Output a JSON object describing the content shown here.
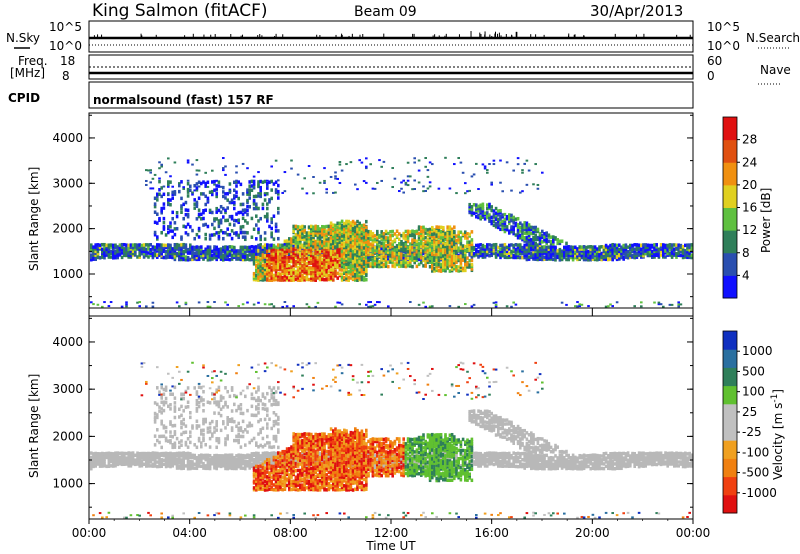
{
  "header": {
    "station": "King Salmon (fitACF)",
    "beam": "Beam 09",
    "date": "30/Apr/2013"
  },
  "top_panels": {
    "nsky_label": "N.Sky",
    "nsearch_label": "N.Search",
    "freq_label_1": "Freq.",
    "freq_label_2": "[MHz]",
    "nave_label": "Nave",
    "cpid_label": "CPID",
    "noise_ticks_left": [
      "10^5",
      "10^0"
    ],
    "noise_ticks_right": [
      "10^5",
      "10^0"
    ],
    "freq_ticks": [
      "18",
      "8"
    ],
    "nave_ticks": [
      "60",
      "0"
    ],
    "cpid_text": "normalsound (fast) 157 RF"
  },
  "chart_data": [
    {
      "type": "heatmap",
      "name": "power",
      "ylabel": "Slant Range [km]",
      "yticks": [
        "1000",
        "2000",
        "3000",
        "4000"
      ],
      "ylim": [
        250,
        4550
      ],
      "colorbar_label": "Power [dB]",
      "colorbar_ticks": [
        "4",
        "8",
        "12",
        "16",
        "20",
        "24",
        "28"
      ],
      "colors": [
        "#1010ff",
        "#2a4fb0",
        "#2f7f5a",
        "#5fc040",
        "#e0d020",
        "#f09010",
        "#e05010",
        "#e01010"
      ]
    },
    {
      "type": "heatmap",
      "name": "velocity",
      "ylabel": "Slant Range [km]",
      "yticks": [
        "1000",
        "2000",
        "3000",
        "4000"
      ],
      "ylim": [
        250,
        4550
      ],
      "colorbar_label": "Velocity [m s",
      "colorbar_label_sup": "-1",
      "colorbar_label_end": "]",
      "colorbar_ticks": [
        "-1000",
        "-500",
        "-100",
        "-25",
        "25",
        "100",
        "500",
        "1000"
      ],
      "colors": [
        "#e01010",
        "#f04010",
        "#f08010",
        "#f0a020",
        "#c0c0c0",
        "#c0c0c0",
        "#60c030",
        "#2f7f5a",
        "#2a6fa0",
        "#1030c0"
      ],
      "ground_scatter_color": "#b8b8b8"
    }
  ],
  "time_axis": {
    "ticks": [
      "00:00",
      "04:00",
      "08:00",
      "12:00",
      "16:00",
      "20:00",
      "00:00"
    ],
    "label": "Time UT"
  }
}
